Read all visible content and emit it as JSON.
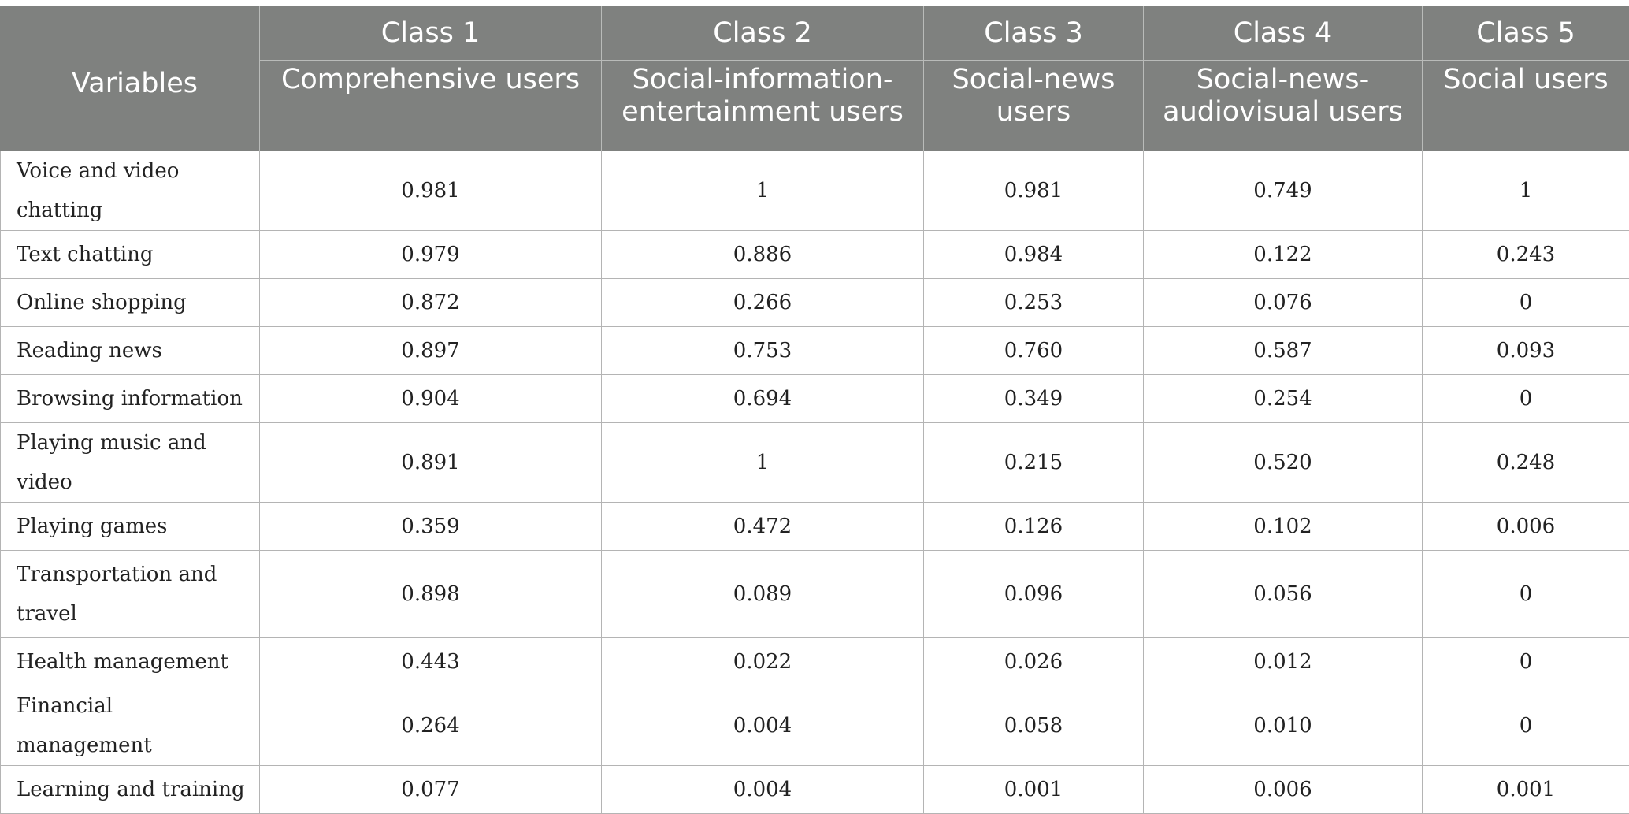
{
  "table": {
    "header": {
      "variables_label": "Variables",
      "classes": [
        {
          "class_label": "Class 1",
          "name": "Comprehensive users"
        },
        {
          "class_label": "Class 2",
          "name": "Social-information-entertainment users"
        },
        {
          "class_label": "Class 3",
          "name": "Social-news users"
        },
        {
          "class_label": "Class 4",
          "name": "Social-news-audiovisual users"
        },
        {
          "class_label": "Class 5",
          "name": "Social users"
        }
      ]
    },
    "rows": [
      {
        "label": "Voice and video chatting",
        "values": [
          "0.981",
          "1",
          "0.981",
          "0.749",
          "1"
        ]
      },
      {
        "label": "Text chatting",
        "values": [
          "0.979",
          "0.886",
          "0.984",
          "0.122",
          "0.243"
        ]
      },
      {
        "label": "Online shopping",
        "values": [
          "0.872",
          "0.266",
          "0.253",
          "0.076",
          "0"
        ]
      },
      {
        "label": "Reading news",
        "values": [
          "0.897",
          "0.753",
          "0.760",
          "0.587",
          "0.093"
        ]
      },
      {
        "label": "Browsing information",
        "values": [
          "0.904",
          "0.694",
          "0.349",
          "0.254",
          "0"
        ]
      },
      {
        "label": "Playing music and video",
        "values": [
          "0.891",
          "1",
          "0.215",
          "0.520",
          "0.248"
        ]
      },
      {
        "label": "Playing games",
        "values": [
          "0.359",
          "0.472",
          "0.126",
          "0.102",
          "0.006"
        ]
      },
      {
        "label": "Transportation and travel",
        "values": [
          "0.898",
          "0.089",
          "0.096",
          "0.056",
          "0"
        ]
      },
      {
        "label": "Health management",
        "values": [
          "0.443",
          "0.022",
          "0.026",
          "0.012",
          "0"
        ]
      },
      {
        "label": "Financial management",
        "values": [
          "0.264",
          "0.004",
          "0.058",
          "0.010",
          "0"
        ]
      },
      {
        "label": "Learning and training",
        "values": [
          "0.077",
          "0.004",
          "0.001",
          "0.006",
          "0.001"
        ]
      }
    ]
  }
}
